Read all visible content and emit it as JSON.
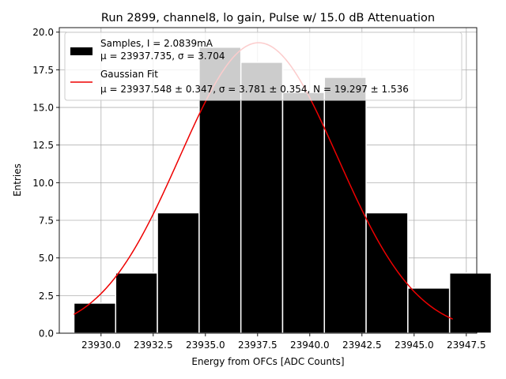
{
  "chart_data": {
    "type": "bar",
    "title": "Run 2899, channel8, lo gain, Pulse w/ 15.0 dB Attenuation",
    "xlabel": "Energy from OFCs [ADC Counts]",
    "ylabel": "Entries",
    "xlim": [
      23928.0,
      23948.0
    ],
    "ylim": [
      0,
      20.3
    ],
    "xticks": [
      23930.0,
      23932.5,
      23935.0,
      23937.5,
      23940.0,
      23942.5,
      23945.0,
      23947.5
    ],
    "xtick_labels": [
      "23930.0",
      "23932.5",
      "23935.0",
      "23937.5",
      "23940.0",
      "23942.5",
      "23945.0",
      "23947.5"
    ],
    "yticks": [
      0,
      2.5,
      5,
      7.5,
      10,
      12.5,
      15,
      17.5,
      20
    ],
    "ytick_labels": [
      "0.0",
      "2.5",
      "5.0",
      "7.5",
      "10.0",
      "12.5",
      "15.0",
      "17.5",
      "20.0"
    ],
    "grid": true,
    "legend_position": "top",
    "bins": {
      "left_edges": [
        23928.7,
        23930.7,
        23932.7,
        23934.7,
        23936.7,
        23938.7,
        23940.7,
        23942.7,
        23944.7,
        23946.7
      ],
      "width": 2.0,
      "counts": [
        2,
        4,
        8,
        19,
        18,
        16,
        17,
        8,
        3,
        4
      ],
      "color": "#000000"
    },
    "fit": {
      "mu": 23937.548,
      "sigma": 3.781,
      "N": 19.297,
      "x_range": [
        23928.7,
        23946.85
      ],
      "color": "#ee0000"
    },
    "legend": [
      {
        "line1": "Samples, I = 2.0839mA",
        "line2": "μ = 23937.735, σ = 3.704",
        "swatch": "patch"
      },
      {
        "line1": "Gaussian Fit",
        "line2": "μ = 23937.548 ± 0.347, σ = 3.781 ± 0.354, N = 19.297 ± 1.536",
        "swatch": "line"
      }
    ]
  }
}
